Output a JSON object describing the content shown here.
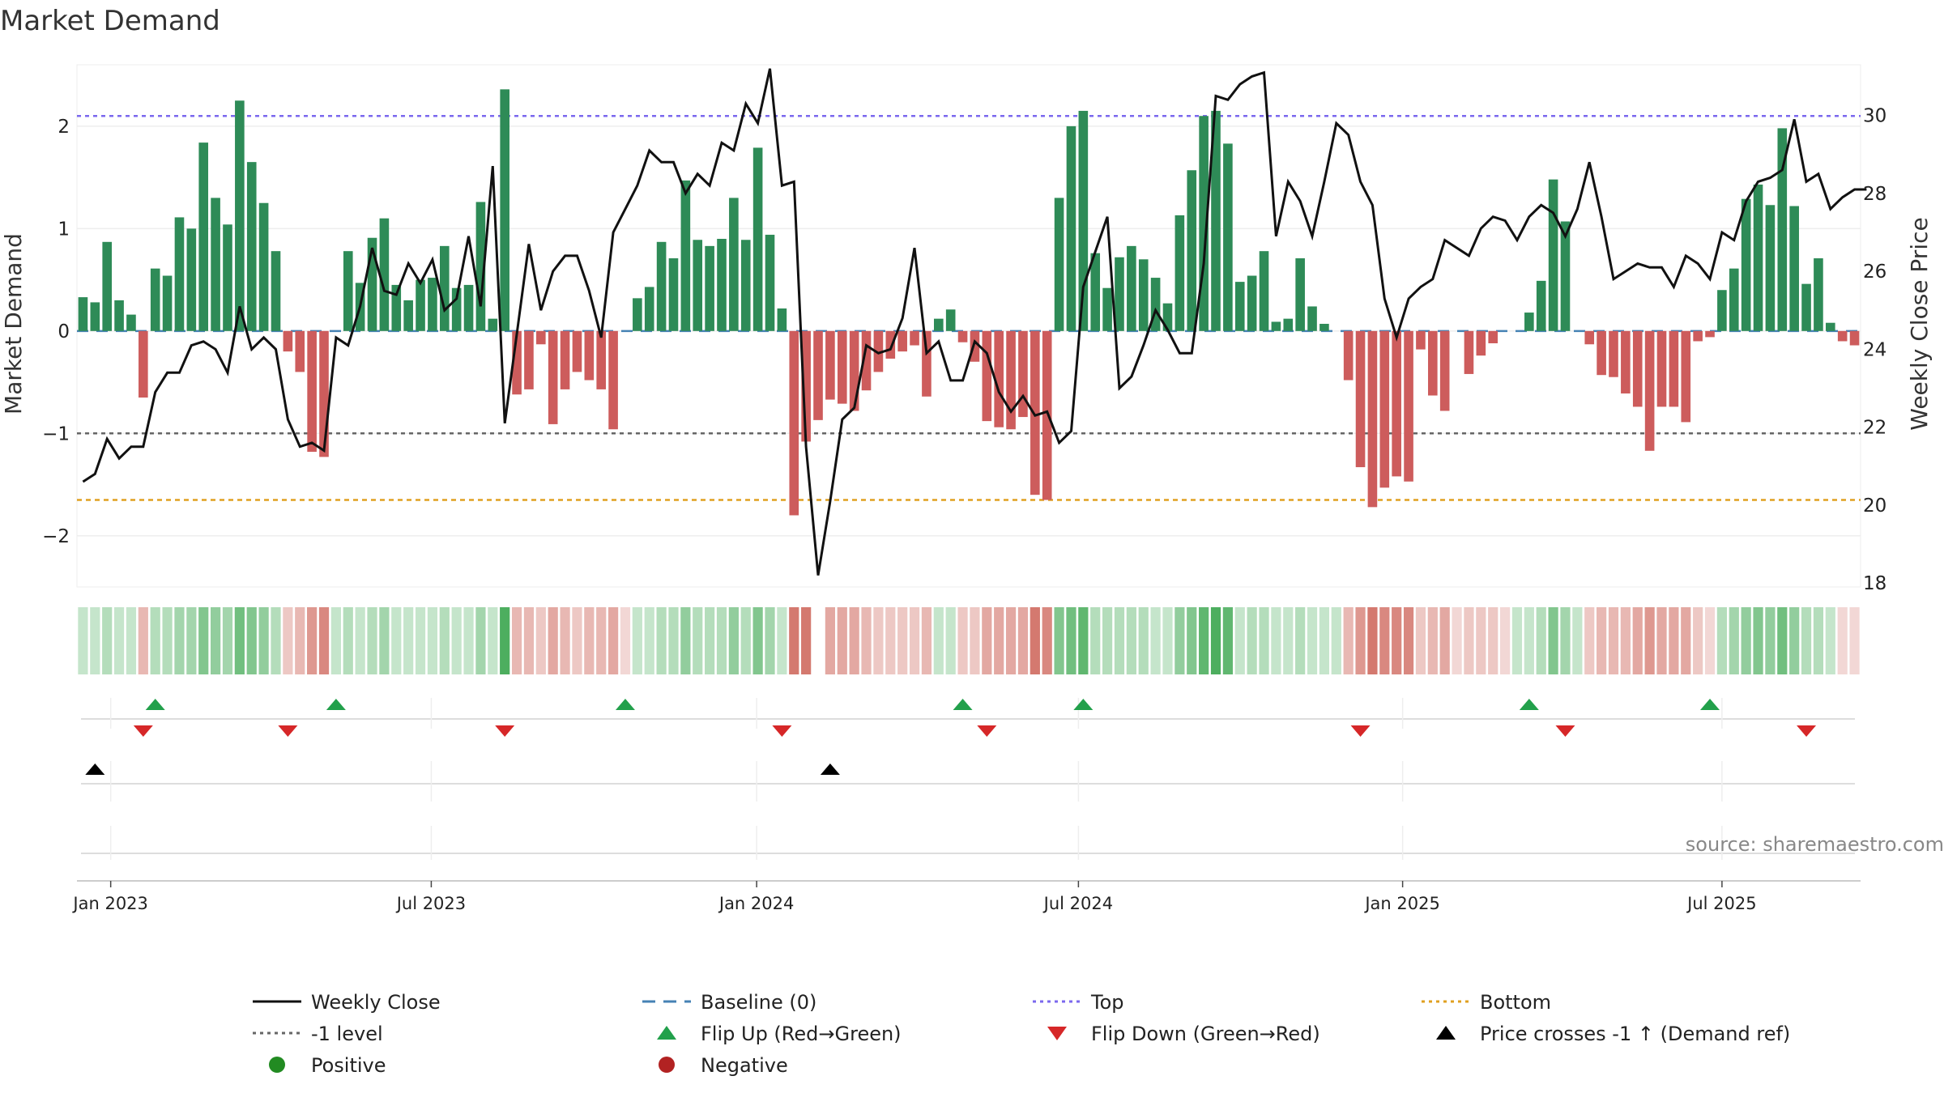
{
  "chart_data": {
    "type": "bar",
    "title": "Market Demand",
    "ylabel_left": "Market Demand",
    "ylabel_right": "Weekly Close Price",
    "ylim_left": [
      -2.5,
      2.6
    ],
    "ylim_right": [
      17.9,
      31.3
    ],
    "left_ticks": [
      2,
      1,
      0,
      -1,
      -2
    ],
    "left_tick_labels": [
      "2",
      "1",
      "0",
      "−1",
      "−2"
    ],
    "right_ticks": [
      30,
      28,
      26,
      24,
      22,
      20,
      18
    ],
    "right_tick_labels": [
      "30",
      "28",
      "26",
      "24",
      "22",
      "20",
      "18"
    ],
    "reference_lines": {
      "top": 2.1,
      "minus_one": -1.0,
      "bottom": -1.65,
      "baseline": 0
    },
    "weeks": 148,
    "x_ticks": [
      {
        "label": "Jan 2023",
        "week": 2.3
      },
      {
        "label": "Jul 2023",
        "week": 28.9
      },
      {
        "label": "Jan 2024",
        "week": 55.9
      },
      {
        "label": "Jul 2024",
        "week": 82.6
      },
      {
        "label": "Jan 2025",
        "week": 109.5
      },
      {
        "label": "Jul 2025",
        "week": 136.0
      }
    ],
    "demand": [
      0.33,
      0.28,
      0.87,
      0.3,
      0.16,
      -0.65,
      0.61,
      0.54,
      1.11,
      1.0,
      1.84,
      1.3,
      1.04,
      2.25,
      1.65,
      1.25,
      0.78,
      -0.2,
      -0.4,
      -1.18,
      -1.23,
      0.0,
      0.78,
      0.47,
      0.91,
      1.1,
      0.45,
      0.3,
      0.5,
      0.52,
      0.83,
      0.42,
      0.45,
      1.26,
      0.12,
      2.36,
      -0.62,
      -0.57,
      -0.13,
      -0.91,
      -0.57,
      -0.4,
      -0.48,
      -0.57,
      -0.96,
      0.0,
      0.32,
      0.43,
      0.87,
      0.71,
      1.47,
      0.89,
      0.83,
      0.9,
      1.3,
      0.89,
      1.79,
      0.94,
      0.22,
      -1.8,
      -1.08,
      -0.87,
      -0.67,
      -0.71,
      -0.78,
      -0.58,
      -0.4,
      -0.27,
      -0.2,
      -0.14,
      -0.64,
      0.12,
      0.21,
      -0.11,
      -0.3,
      -0.88,
      -0.94,
      -0.96,
      -0.84,
      -1.6,
      -1.65,
      1.3,
      2.0,
      2.15,
      0.76,
      0.42,
      0.72,
      0.83,
      0.7,
      0.52,
      0.27,
      1.13,
      1.57,
      2.1,
      2.15,
      1.83,
      0.48,
      0.54,
      0.78,
      0.09,
      0.12,
      0.71,
      0.24,
      0.07,
      0.0,
      -0.48,
      -1.33,
      -1.72,
      -1.53,
      -1.42,
      -1.47,
      -0.18,
      -0.63,
      -0.78,
      -0.0,
      -0.42,
      -0.24,
      -0.12,
      0.0,
      0.0,
      0.18,
      0.49,
      1.48,
      1.07,
      0.0,
      -0.13,
      -0.43,
      -0.45,
      -0.61,
      -0.74,
      -1.17,
      -0.74,
      -0.74,
      -0.89,
      -0.1,
      -0.06,
      0.4,
      0.61,
      1.29,
      1.43,
      1.23,
      1.98,
      1.22,
      0.46,
      0.71,
      0.08,
      -0.1,
      -0.14
    ],
    "weekly_close": [
      20.6,
      20.8,
      21.7,
      21.2,
      21.5,
      21.5,
      22.9,
      23.4,
      23.4,
      24.1,
      24.2,
      24.0,
      23.4,
      25.1,
      24.0,
      24.3,
      24.0,
      22.2,
      21.5,
      21.6,
      21.4,
      24.3,
      24.1,
      25.1,
      26.6,
      25.5,
      25.4,
      26.2,
      25.7,
      26.3,
      25.0,
      25.3,
      26.9,
      25.1,
      28.7,
      22.1,
      24.4,
      26.7,
      25.0,
      26.0,
      26.4,
      26.4,
      25.5,
      24.3,
      27.0,
      27.6,
      28.2,
      29.1,
      28.8,
      28.8,
      28.0,
      28.5,
      28.2,
      29.3,
      29.1,
      30.3,
      29.8,
      31.2,
      28.2,
      28.3,
      21.5,
      18.2,
      20.1,
      22.2,
      22.5,
      24.1,
      23.9,
      24.0,
      24.8,
      26.6,
      23.9,
      24.2,
      23.2,
      23.2,
      24.2,
      23.9,
      22.9,
      22.4,
      22.8,
      22.3,
      22.4,
      21.6,
      21.9,
      25.6,
      26.5,
      27.4,
      23.0,
      23.3,
      24.1,
      25.0,
      24.5,
      23.9,
      23.9,
      26.2,
      30.5,
      30.4,
      30.8,
      31.0,
      31.1,
      26.9,
      28.3,
      27.8,
      26.9,
      28.3,
      29.8,
      29.5,
      28.3,
      27.7,
      25.3,
      24.3,
      25.3,
      25.6,
      25.8,
      26.8,
      26.6,
      26.4,
      27.1,
      27.4,
      27.3,
      26.8,
      27.4,
      27.7,
      27.5,
      26.9,
      27.6,
      28.8,
      27.4,
      25.8,
      26.0,
      26.2,
      26.1,
      26.1,
      25.6,
      26.4,
      26.2,
      25.8,
      27.0,
      26.8,
      27.8,
      28.3,
      28.4,
      28.6,
      29.9,
      28.3,
      28.5,
      27.6,
      27.9,
      28.1,
      28.1
    ],
    "flip_up_weeks": [
      6,
      21,
      45,
      73,
      83,
      120,
      135
    ],
    "flip_down_weeks": [
      5,
      17,
      35,
      58,
      75,
      106,
      123,
      143
    ],
    "price_cross_weeks": [
      1,
      62
    ],
    "strip_intensity": [
      0.28,
      0.28,
      0.36,
      0.28,
      0.28,
      -0.36,
      0.36,
      0.36,
      0.44,
      0.44,
      0.6,
      0.52,
      0.44,
      0.68,
      0.6,
      0.52,
      0.36,
      -0.28,
      -0.36,
      -0.52,
      -0.6,
      0.28,
      0.36,
      0.28,
      0.36,
      0.44,
      0.28,
      0.28,
      0.28,
      0.28,
      0.36,
      0.28,
      0.28,
      0.44,
      0.28,
      0.85,
      -0.36,
      -0.36,
      -0.28,
      -0.44,
      -0.36,
      -0.28,
      -0.36,
      -0.36,
      -0.44,
      -0.2,
      0.28,
      0.28,
      0.36,
      0.36,
      0.52,
      0.36,
      0.36,
      0.36,
      0.52,
      0.36,
      0.6,
      0.44,
      0.28,
      -0.68,
      -0.68,
      0.0,
      -0.44,
      -0.44,
      -0.44,
      -0.36,
      -0.28,
      -0.28,
      -0.28,
      -0.28,
      -0.36,
      0.28,
      0.28,
      -0.28,
      -0.28,
      -0.44,
      -0.44,
      -0.44,
      -0.44,
      -0.68,
      -0.6,
      0.6,
      0.68,
      0.76,
      0.36,
      0.36,
      0.36,
      0.36,
      0.36,
      0.28,
      0.28,
      0.52,
      0.6,
      0.76,
      0.85,
      0.76,
      0.28,
      0.36,
      0.36,
      0.28,
      0.28,
      0.36,
      0.28,
      0.28,
      0.28,
      -0.36,
      -0.52,
      -0.68,
      -0.6,
      -0.6,
      -0.6,
      -0.28,
      -0.36,
      -0.44,
      -0.2,
      -0.28,
      -0.28,
      -0.28,
      -0.2,
      0.28,
      0.28,
      0.36,
      0.6,
      0.44,
      0.28,
      -0.28,
      -0.36,
      -0.36,
      -0.36,
      -0.44,
      -0.52,
      -0.44,
      -0.44,
      -0.44,
      -0.28,
      -0.2,
      0.36,
      0.44,
      0.52,
      0.6,
      0.52,
      0.68,
      0.52,
      0.36,
      0.36,
      0.28,
      -0.2,
      -0.2
    ],
    "legend": [
      "Weekly Close",
      "Baseline (0)",
      "Top",
      "Bottom",
      "-1 level",
      "Flip Up (Red→Green)",
      "Flip Down (Green→Red)",
      "Price crosses -1 ↑ (Demand ref)",
      "Positive",
      "Negative"
    ],
    "source": "source: sharemaestro.com"
  },
  "colors": {
    "positive": "#2e8b57",
    "negative": "#cd5c5c",
    "price": "#111111",
    "top": "#7b68ee",
    "bottom": "#e0a020",
    "minus_one": "#666666",
    "baseline": "#4682b4",
    "flip_up": "#22a04b",
    "flip_down": "#d62728",
    "cross": "#000000",
    "positive_dot": "#228b22",
    "negative_dot": "#b22222"
  }
}
